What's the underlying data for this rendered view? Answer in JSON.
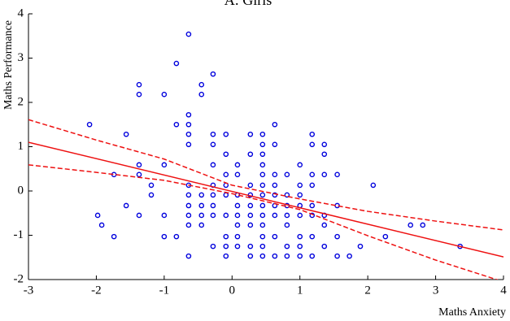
{
  "chart_data": {
    "type": "scatter",
    "title": "A: Girls",
    "xlabel": "Maths Anxiety",
    "ylabel": "Maths Performance",
    "xlim": [
      -3,
      4
    ],
    "ylim": [
      -2,
      4
    ],
    "xticks": [
      -3,
      -2,
      -1,
      0,
      1,
      2,
      3,
      4
    ],
    "yticks": [
      -2,
      -1,
      0,
      1,
      2,
      3,
      4
    ],
    "grid": false,
    "point_color": "#0000dd",
    "line_color": "#ee1111",
    "points": {
      "x": [
        -2.1,
        -1.98,
        -1.92,
        -1.74,
        -1.74,
        -1.56,
        -1.56,
        -1.37,
        -1.37,
        -1.37,
        -1.37,
        -1.37,
        -1.19,
        -1.19,
        -1.0,
        -1.0,
        -1.0,
        -1.0,
        -0.82,
        -0.82,
        -0.82,
        -0.64,
        -0.64,
        -0.64,
        -0.64,
        -0.64,
        -0.64,
        -0.64,
        -0.64,
        -0.64,
        -0.64,
        -0.64,
        -0.45,
        -0.45,
        -0.45,
        -0.45,
        -0.45,
        -0.45,
        -0.28,
        -0.28,
        -0.28,
        -0.28,
        -0.28,
        -0.28,
        -0.28,
        -0.28,
        -0.28,
        -0.09,
        -0.09,
        -0.09,
        -0.09,
        -0.09,
        -0.09,
        -0.09,
        -0.09,
        -0.09,
        0.08,
        0.08,
        0.08,
        0.08,
        0.08,
        0.08,
        0.08,
        0.08,
        0.27,
        0.27,
        0.27,
        0.27,
        0.27,
        0.27,
        0.27,
        0.27,
        0.27,
        0.45,
        0.45,
        0.45,
        0.45,
        0.45,
        0.45,
        0.45,
        0.45,
        0.45,
        0.45,
        0.45,
        0.45,
        0.45,
        0.63,
        0.63,
        0.63,
        0.63,
        0.63,
        0.63,
        0.63,
        0.63,
        0.63,
        0.81,
        0.81,
        0.81,
        0.81,
        0.81,
        0.81,
        0.81,
        1.0,
        1.0,
        1.0,
        1.0,
        1.0,
        1.0,
        1.0,
        1.0,
        1.18,
        1.18,
        1.18,
        1.18,
        1.18,
        1.18,
        1.18,
        1.18,
        1.36,
        1.36,
        1.36,
        1.36,
        1.36,
        1.36,
        1.55,
        1.55,
        1.55,
        1.55,
        1.73,
        1.89,
        2.08,
        2.26,
        2.63,
        2.81,
        3.36
      ],
      "y": [
        1.5,
        -0.55,
        -0.77,
        -1.03,
        0.37,
        1.28,
        -0.33,
        2.4,
        2.18,
        0.59,
        0.37,
        -0.55,
        0.13,
        -0.09,
        2.18,
        0.59,
        -0.55,
        -1.03,
        2.88,
        1.5,
        -1.03,
        3.54,
        1.72,
        1.5,
        1.28,
        1.05,
        0.13,
        -0.09,
        -0.33,
        -0.55,
        -0.77,
        -1.47,
        2.4,
        2.18,
        -0.09,
        -0.33,
        -0.55,
        -0.77,
        2.64,
        1.28,
        1.05,
        0.59,
        0.13,
        -0.09,
        -0.33,
        -0.55,
        -1.25,
        1.28,
        0.83,
        0.37,
        0.13,
        -0.09,
        -0.55,
        -1.03,
        -1.25,
        -1.47,
        0.59,
        0.37,
        -0.09,
        -0.33,
        -0.55,
        -0.77,
        -1.03,
        -1.25,
        1.28,
        0.83,
        0.13,
        -0.09,
        -0.33,
        -0.55,
        -0.77,
        -1.25,
        -1.47,
        1.28,
        1.05,
        0.83,
        0.59,
        0.37,
        0.13,
        -0.09,
        -0.33,
        -0.55,
        -0.77,
        -1.03,
        -1.25,
        -1.47,
        1.5,
        1.05,
        0.37,
        0.13,
        -0.09,
        -0.33,
        -0.55,
        -1.03,
        -1.47,
        0.37,
        -0.09,
        -0.33,
        -0.55,
        -0.77,
        -1.25,
        -1.47,
        0.59,
        0.13,
        -0.09,
        -0.33,
        -0.55,
        -1.03,
        -1.25,
        -1.47,
        1.28,
        1.05,
        0.37,
        0.13,
        -0.33,
        -0.55,
        -1.03,
        -1.47,
        1.05,
        0.83,
        0.37,
        -0.55,
        -0.77,
        -1.25,
        0.37,
        -0.33,
        -1.03,
        -1.47,
        -1.47,
        -1.25,
        0.13,
        -1.03,
        -0.77,
        -0.77,
        -1.25
      ]
    },
    "fit": {
      "x": [
        -3,
        4
      ],
      "y": [
        1.1,
        -1.49
      ]
    },
    "ci_upper": {
      "x": [
        -3,
        -2,
        -1,
        0,
        1,
        2,
        3,
        4
      ],
      "y": [
        1.61,
        1.15,
        0.72,
        0.13,
        -0.18,
        -0.46,
        -0.68,
        -0.88
      ]
    },
    "ci_lower": {
      "x": [
        -3,
        -2,
        -1,
        0,
        1,
        2,
        3,
        4
      ],
      "y": [
        0.59,
        0.42,
        0.24,
        -0.06,
        -0.42,
        -1.01,
        -1.56,
        -2.05
      ]
    }
  }
}
